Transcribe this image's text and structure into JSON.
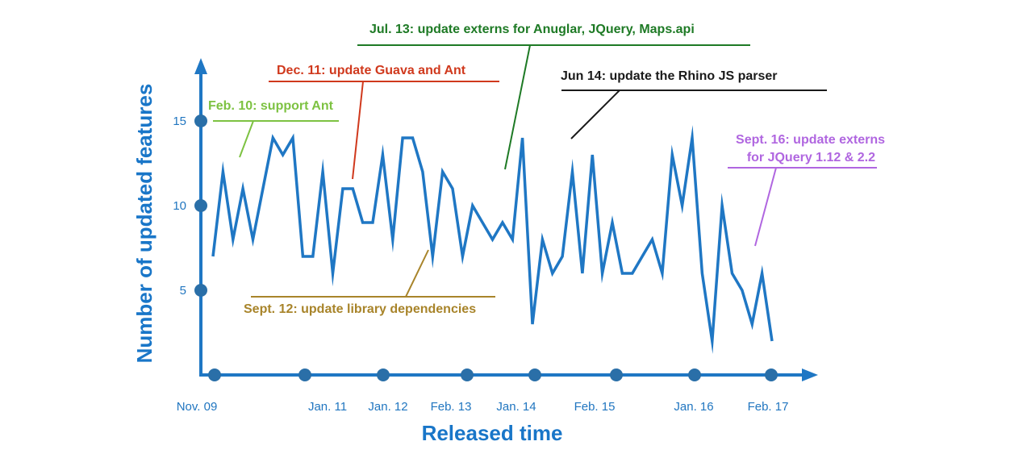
{
  "chart_data": {
    "type": "line",
    "xlabel": "Released time",
    "ylabel": "Number of updated features",
    "yticks": [
      5,
      10,
      15
    ],
    "xticks": [
      "Nov. 09",
      "Jan. 11",
      "Jan. 12",
      "Feb. 13",
      "Jan. 14",
      "Feb. 15",
      "Jan. 16",
      "Feb. 17"
    ],
    "ylim": [
      0,
      18
    ],
    "grid": false,
    "series": [
      {
        "values": [
          7,
          12,
          8,
          11,
          8,
          11,
          14,
          13,
          14,
          7,
          7,
          12,
          6,
          11,
          11,
          9,
          9,
          13,
          8,
          14,
          14,
          12,
          7,
          12,
          11,
          7,
          10,
          9,
          8,
          9,
          8,
          14,
          3,
          8,
          6,
          7,
          12,
          6,
          13,
          6,
          9,
          6,
          6,
          7,
          8,
          6,
          13,
          10,
          14,
          6,
          2,
          10,
          6,
          5,
          3,
          6,
          2
        ]
      }
    ],
    "annotations": [
      {
        "text": "Feb. 10: support Ant",
        "color": "#7dc242"
      },
      {
        "text": "Dec. 11: update Guava and Ant",
        "color": "#d0391d"
      },
      {
        "text": "Jul. 13: update externs for Anuglar, JQuery, Maps.api",
        "color": "#1e7a25"
      },
      {
        "text": "Jun 14: update the Rhino JS parser",
        "color": "#1a1a1a"
      },
      {
        "text": "Sept. 16: update externs",
        "color": "#b066e0"
      },
      {
        "text": "for JQuery 1.12 & 2.2",
        "color": "#b066e0"
      },
      {
        "text": "Sept. 12: update library dependencies",
        "color": "#a8842a"
      }
    ],
    "colors": {
      "line": "#1f77c4",
      "axis": "#1f77c4",
      "marker": "#2a6fa8"
    }
  }
}
